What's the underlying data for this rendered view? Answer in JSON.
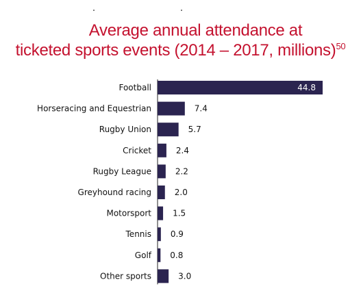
{
  "title": {
    "line1": "Average annual attendance at",
    "line2": "ticketed sports events (2014 – 2017, millions)",
    "footnote": "50"
  },
  "colors": {
    "title": "#c4122f",
    "bar": "#2b2450",
    "axis": "#222222",
    "value_inside": "#ffffff",
    "value_outside": "#111111"
  },
  "chart_data": {
    "type": "bar",
    "orientation": "horizontal",
    "title": "Average annual attendance at ticketed sports events (2014 – 2017, millions)",
    "categories": [
      "Football",
      "Horseracing and Equestrian",
      "Rugby Union",
      "Cricket",
      "Rugby League",
      "Greyhound racing",
      "Motorsport",
      "Tennis",
      "Golf",
      "Other sports"
    ],
    "values": [
      44.8,
      7.4,
      5.7,
      2.4,
      2.2,
      2.0,
      1.5,
      0.9,
      0.8,
      3.0
    ],
    "value_labels": [
      "44.8",
      "7.4",
      "5.7",
      "2.4",
      "2.2",
      "2.0",
      "1.5",
      "0.9",
      "0.8",
      "3.0"
    ],
    "xlim": [
      0,
      44.8
    ],
    "grid": false,
    "legend": "none"
  }
}
